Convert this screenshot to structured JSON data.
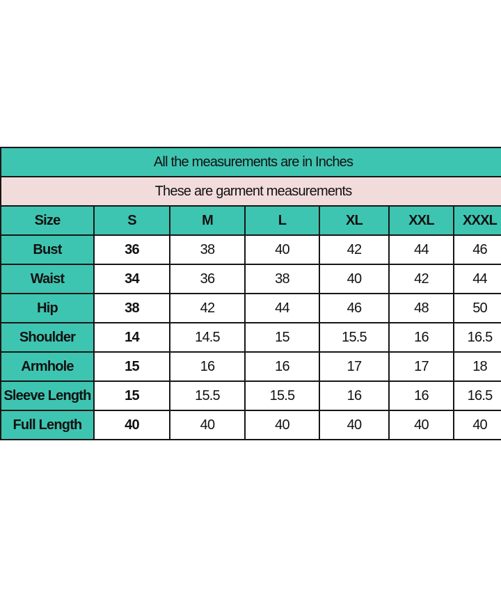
{
  "table": {
    "title": "All the measurements are in Inches",
    "subtitle": "These are garment measurements",
    "header": [
      "Size",
      "S",
      "M",
      "L",
      "XL",
      "XXL",
      "XXXL"
    ],
    "rows": [
      {
        "label": "Bust",
        "values": [
          36,
          38,
          40,
          42,
          44,
          46
        ]
      },
      {
        "label": "Waist",
        "values": [
          34,
          36,
          38,
          40,
          42,
          44
        ]
      },
      {
        "label": "Hip",
        "values": [
          38,
          42,
          44,
          46,
          48,
          50
        ]
      },
      {
        "label": "Shoulder",
        "values": [
          14,
          14.5,
          15,
          15.5,
          16,
          16.5
        ]
      },
      {
        "label": "Armhole",
        "values": [
          15,
          16,
          16,
          17,
          17,
          18
        ]
      },
      {
        "label": "Sleeve Length",
        "values": [
          15,
          15.5,
          15.5,
          16,
          16,
          16.5
        ]
      },
      {
        "label": "Full Length",
        "values": [
          40,
          40,
          40,
          40,
          40,
          40
        ]
      }
    ]
  }
}
